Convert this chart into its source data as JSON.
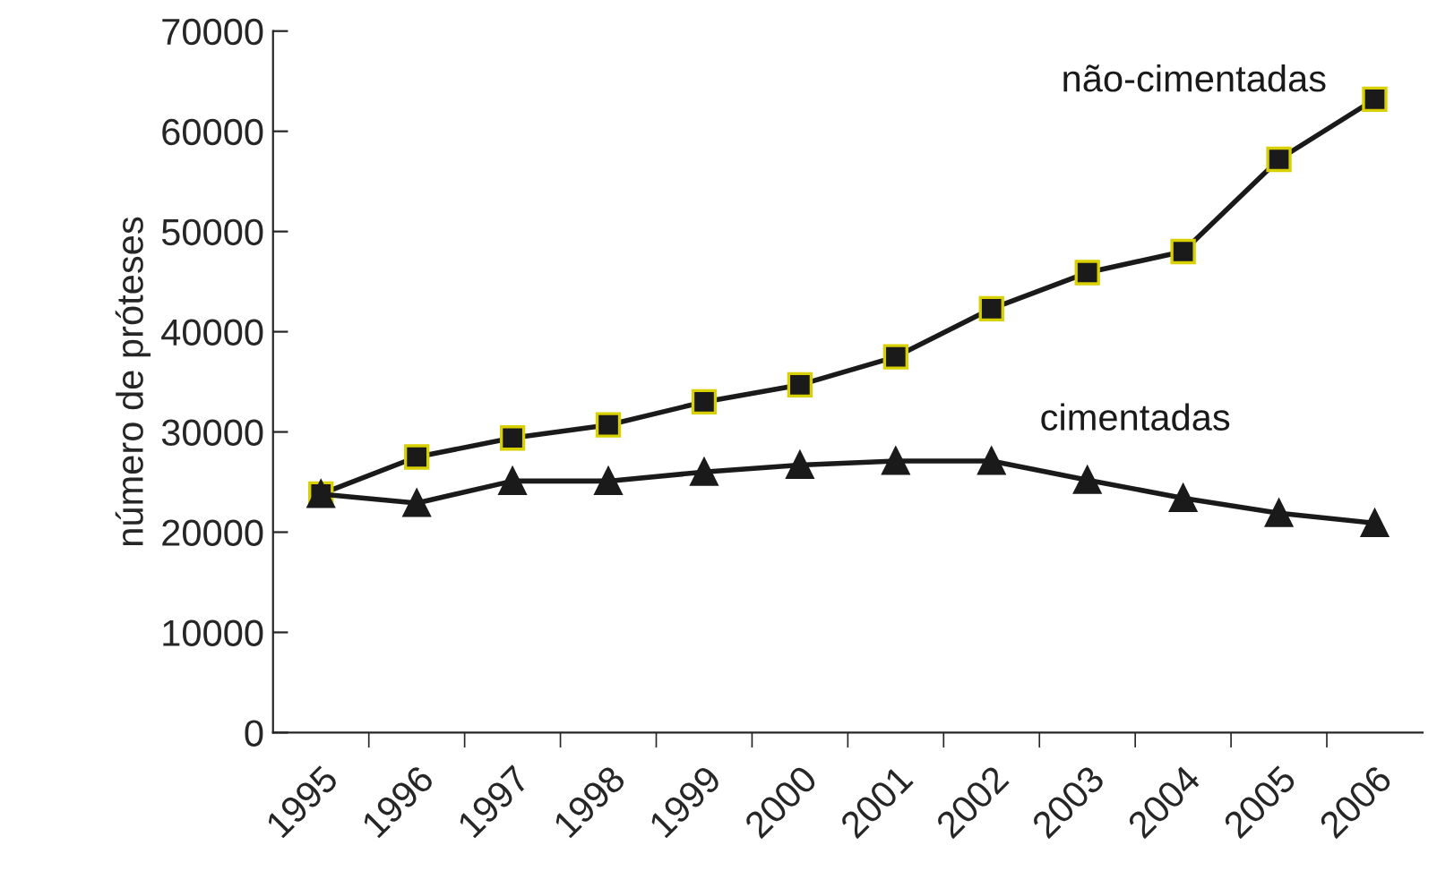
{
  "chart_data": {
    "type": "line",
    "ylabel": "número de próteses",
    "categories": [
      "1995",
      "1996",
      "1997",
      "1998",
      "1999",
      "2000",
      "2001",
      "2002",
      "2003",
      "2004",
      "2005",
      "2006"
    ],
    "series": [
      {
        "name": "não-cimentadas",
        "color": "#1a1a1a",
        "marker": "square",
        "values": [
          23800,
          27500,
          29400,
          30700,
          33000,
          34700,
          37500,
          42300,
          45900,
          48000,
          57200,
          63200
        ]
      },
      {
        "name": "cimentadas",
        "color": "#1a1a1a",
        "marker": "triangle",
        "values": [
          23800,
          22900,
          25100,
          25100,
          26000,
          26700,
          27100,
          27100,
          25200,
          23400,
          21900,
          20900
        ]
      }
    ],
    "ylim": [
      0,
      70000
    ],
    "yticks": [
      0,
      10000,
      20000,
      30000,
      40000,
      50000,
      60000,
      70000
    ],
    "grid": false,
    "legend": false,
    "line_style": "solid"
  }
}
